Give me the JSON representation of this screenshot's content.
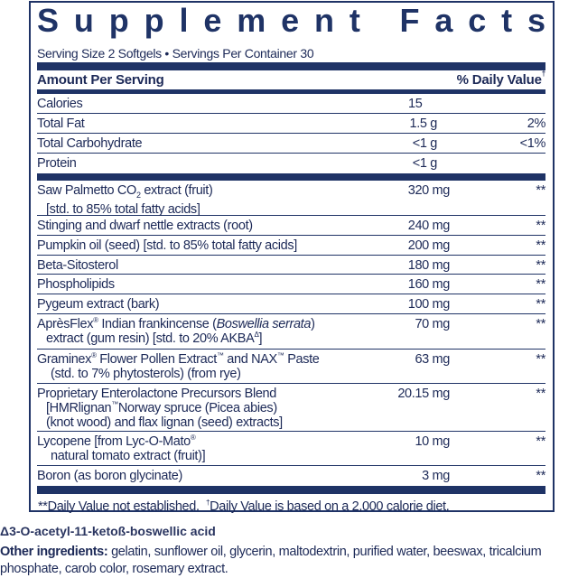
{
  "title": "Supplement Facts",
  "serving": "Serving Size 2 Softgels • Servings Per Container 30",
  "header": {
    "amount": "Amount Per Serving",
    "dv": "% Daily Value",
    "dv_mark": "†"
  },
  "basic": [
    {
      "name": "Calories",
      "amount": "15",
      "dv": ""
    },
    {
      "name": "Total Fat",
      "amount": "1.5 g",
      "dv": "2%"
    },
    {
      "name": "Total Carbohydrate",
      "amount": "<1 g",
      "dv": "<1%"
    },
    {
      "name": "Protein",
      "amount": "<1 g",
      "dv": ""
    }
  ],
  "items": [
    {
      "name": "Saw Palmetto CO",
      "name_sub": "2",
      "name_rest": " extract (fruit)",
      "line2": "[std. to 85% total fatty acids]",
      "amount": "320 mg",
      "dv": "**"
    },
    {
      "name": "Stinging and dwarf nettle extracts (root)",
      "amount": "240 mg",
      "dv": "**"
    },
    {
      "name": "Pumpkin oil (seed) [std. to 85% total fatty acids]",
      "amount": "200 mg",
      "dv": "**"
    },
    {
      "name": "Beta-Sitosterol",
      "amount": "180 mg",
      "dv": "**"
    },
    {
      "name": "Phospholipids",
      "amount": "160 mg",
      "dv": "**"
    },
    {
      "name": "Pygeum extract (bark)",
      "amount": "100 mg",
      "dv": "**"
    },
    {
      "name": "AprèsFlex",
      "reg": "®",
      "name_rest": " Indian frankincense (",
      "italic": "Boswellia serrata",
      "close": ")",
      "line2": "extract (gum resin) [std. to 20% AKBA",
      "line2_sup": "Δ",
      "line2_end": "]",
      "amount": "70 mg",
      "dv": "**"
    },
    {
      "name": "Graminex",
      "reg": "®",
      "name_rest": " Flower Pollen Extract",
      "tm": "™",
      "name_rest2": " and NAX",
      "tm2": "™",
      "name_rest3": " Paste",
      "line2": "(std. to 7% phytosterols) (from rye)",
      "amount": "63 mg",
      "dv": "**"
    },
    {
      "name": "Proprietary Enterolactone Precursors Blend",
      "line2": "[HMRlignan",
      "line2_sup": "™",
      "line2_end": "Norway spruce (Picea abies)",
      "line3": "(knot wood) and flax lignan (seed) extracts]",
      "amount": "20.15 mg",
      "dv": "**"
    },
    {
      "name": "Lycopene [from Lyc-O-Mato",
      "reg": "®",
      "line2": "natural tomato extract (fruit)]",
      "amount": "10 mg",
      "dv": "**"
    },
    {
      "name": "Boron (as boron glycinate)",
      "amount": "3 mg",
      "dv": "**"
    }
  ],
  "footnote": {
    "a": "**Daily Value not established.",
    "dagger": "†",
    "b": "Daily Value is based on a 2,000 calorie diet."
  },
  "delta_note": "Δ3-O-acetyl-11-ketoß-boswellic acid",
  "other": {
    "label": "Other ingredients:",
    "text": " gelatin, sunflower oil, glycerin, maltodextrin, purified water, beeswax, tricalcium phosphate, carob color, rosemary extract."
  },
  "colors": {
    "navy": "#1f3366",
    "text": "#1c2957"
  }
}
